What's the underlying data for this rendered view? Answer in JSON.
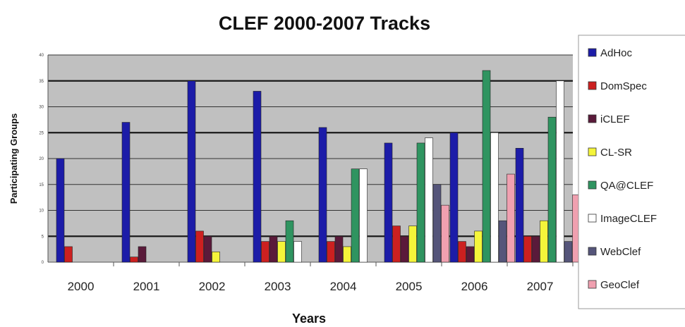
{
  "chart_data": {
    "type": "bar",
    "title": "CLEF 2000-2007 Tracks",
    "xlabel": "Years",
    "ylabel": "Participating Groups",
    "categories": [
      "2000",
      "2001",
      "2002",
      "2003",
      "2004",
      "2005",
      "2006",
      "2007"
    ],
    "ylim": [
      0,
      40
    ],
    "yticks": [
      "0",
      "5",
      "10",
      "15",
      "20",
      "25",
      "30",
      "35",
      "40"
    ],
    "grid": true,
    "legend_position": "right",
    "series": [
      {
        "name": "AdHoc",
        "color": "#1c1ca8",
        "values": [
          20,
          27,
          35,
          33,
          26,
          23,
          25,
          22
        ]
      },
      {
        "name": "DomSpec",
        "color": "#cc2020",
        "values": [
          3,
          1,
          6,
          4,
          4,
          7,
          4,
          5
        ]
      },
      {
        "name": "iCLEF",
        "color": "#5a1a3a",
        "values": [
          null,
          3,
          5,
          5,
          5,
          5,
          3,
          5
        ]
      },
      {
        "name": "CL-SR",
        "color": "#f5f53a",
        "values": [
          null,
          null,
          2,
          4,
          3,
          7,
          6,
          8
        ]
      },
      {
        "name": "QA@CLEF",
        "color": "#2f9460",
        "values": [
          null,
          null,
          null,
          8,
          18,
          23,
          37,
          28
        ]
      },
      {
        "name": "ImageCLEF",
        "color": "#ffffff",
        "values": [
          null,
          null,
          null,
          4,
          18,
          24,
          25,
          35
        ]
      },
      {
        "name": "WebClef",
        "color": "#55557a",
        "values": [
          null,
          null,
          null,
          null,
          null,
          15,
          8,
          4
        ]
      },
      {
        "name": "GeoClef",
        "color": "#f0a0b0",
        "values": [
          null,
          null,
          null,
          null,
          null,
          11,
          17,
          13
        ]
      }
    ]
  }
}
